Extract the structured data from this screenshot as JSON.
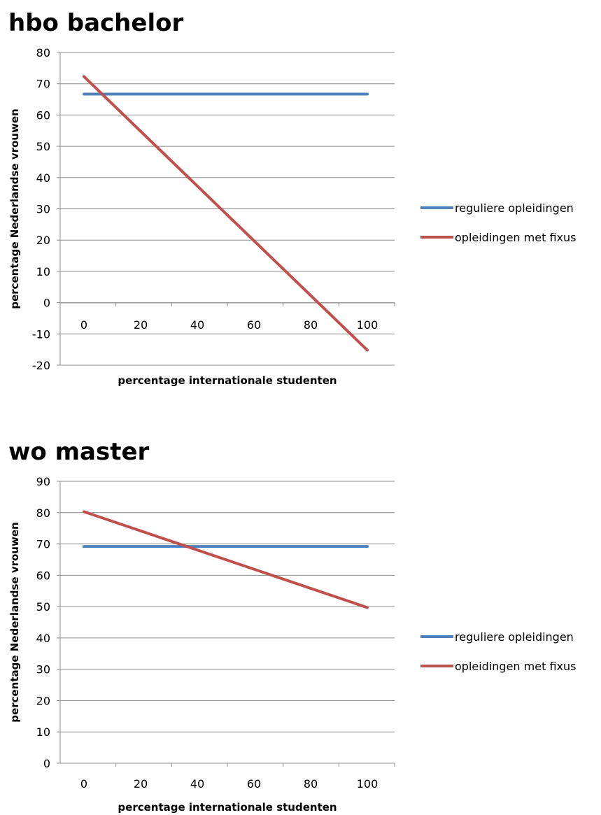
{
  "chart_data": [
    {
      "type": "line",
      "title": "hbo bachelor",
      "xlabel": "percentage internationale studenten",
      "ylabel": "percentage Nederlandse vrouwen",
      "ylim": [
        -20,
        80
      ],
      "xlim": [
        0,
        100
      ],
      "yticks": [
        "80",
        "70",
        "60",
        "50",
        "40",
        "30",
        "20",
        "10",
        "0",
        "-10",
        "-20"
      ],
      "xticks": [
        "0",
        "20",
        "40",
        "60",
        "80",
        "100"
      ],
      "grid": true,
      "legend": "right",
      "series": [
        {
          "name": "reguliere opleidingen",
          "color": "#4f81bd",
          "x": [
            0,
            100
          ],
          "y": [
            66.7,
            66.7
          ]
        },
        {
          "name": "opleidingen met fixus",
          "color": "#c0504d",
          "x": [
            0,
            100
          ],
          "y": [
            72.3,
            -15.2
          ]
        }
      ]
    },
    {
      "type": "line",
      "title": "wo master",
      "xlabel": "percentage internationale studenten",
      "ylabel": "percentage Nederlandse vrouwen",
      "ylim": [
        0,
        90
      ],
      "xlim": [
        0,
        100
      ],
      "yticks": [
        "90",
        "80",
        "70",
        "60",
        "50",
        "40",
        "30",
        "20",
        "10",
        "0"
      ],
      "xticks": [
        "0",
        "20",
        "40",
        "60",
        "80",
        "100"
      ],
      "grid": true,
      "legend": "right",
      "series": [
        {
          "name": "reguliere opleidingen",
          "color": "#4f81bd",
          "x": [
            0,
            100
          ],
          "y": [
            69.2,
            69.2
          ]
        },
        {
          "name": "opleidingen met fixus",
          "color": "#c0504d",
          "x": [
            0,
            100
          ],
          "y": [
            80.3,
            49.7
          ]
        }
      ]
    }
  ]
}
